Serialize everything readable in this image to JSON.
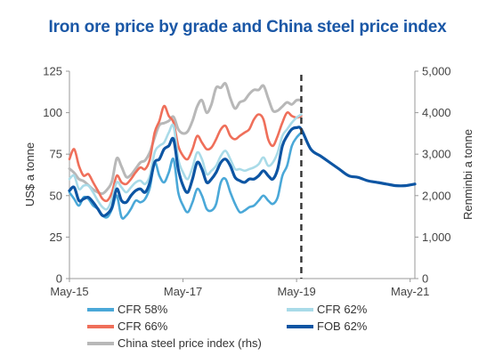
{
  "chart_data": {
    "type": "line",
    "title": "Iron ore price by grade and China steel price index",
    "ylabel": "US$ a tonne",
    "ylabel_right": "Renminbi a tonne",
    "xlabel": "",
    "x_ticks": [
      "May-15",
      "May-17",
      "May-19",
      "May-21"
    ],
    "y_ticks_left": [
      "0",
      "25",
      "50",
      "75",
      "100",
      "125"
    ],
    "y_ticks_right": [
      "0",
      "1,000",
      "2,000",
      "3,000",
      "4,000",
      "5,000"
    ],
    "ylim": [
      0,
      125
    ],
    "ylim_right": [
      0,
      5000
    ],
    "xlim": [
      "2015-05",
      "2021-06"
    ],
    "forecast_marker": "2019-06",
    "legend_placement": "bottom",
    "grid": false,
    "colors": {
      "title": "#1a57a6",
      "cfr58": "#4aa8d8",
      "cfr62": "#a9dbe8",
      "cfr66": "#ef6f5a",
      "fob62": "#0d55a3",
      "steel": "#b8b8b8",
      "marker": "#333333"
    },
    "series": [
      {
        "name": "CFR 58%",
        "key": "cfr58",
        "axis": "left",
        "x": [
          "2015-05",
          "2015-06",
          "2015-07",
          "2015-08",
          "2015-09",
          "2015-10",
          "2015-11",
          "2015-12",
          "2016-01",
          "2016-02",
          "2016-03",
          "2016-04",
          "2016-05",
          "2016-06",
          "2016-07",
          "2016-08",
          "2016-09",
          "2016-10",
          "2016-11",
          "2016-12",
          "2017-01",
          "2017-02",
          "2017-03",
          "2017-04",
          "2017-05",
          "2017-06",
          "2017-07",
          "2017-08",
          "2017-09",
          "2017-10",
          "2017-11",
          "2017-12",
          "2018-01",
          "2018-02",
          "2018-03",
          "2018-04",
          "2018-05",
          "2018-06",
          "2018-07",
          "2018-08",
          "2018-09",
          "2018-10",
          "2018-11",
          "2018-12",
          "2019-01",
          "2019-02",
          "2019-03",
          "2019-04",
          "2019-05",
          "2019-06"
        ],
        "values": [
          52,
          48,
          44,
          49,
          48,
          44,
          42,
          38,
          37,
          42,
          50,
          37,
          38,
          42,
          47,
          46,
          48,
          55,
          70,
          62,
          58,
          64,
          72,
          52,
          44,
          40,
          46,
          54,
          50,
          42,
          41,
          45,
          58,
          60,
          52,
          45,
          40,
          41,
          43,
          44,
          47,
          50,
          47,
          45,
          49,
          62,
          68,
          80,
          85,
          88
        ]
      },
      {
        "name": "CFR 62%",
        "key": "cfr62",
        "axis": "left",
        "x": [
          "2015-05",
          "2015-06",
          "2015-07",
          "2015-08",
          "2015-09",
          "2015-10",
          "2015-11",
          "2015-12",
          "2016-01",
          "2016-02",
          "2016-03",
          "2016-04",
          "2016-05",
          "2016-06",
          "2016-07",
          "2016-08",
          "2016-09",
          "2016-10",
          "2016-11",
          "2016-12",
          "2017-01",
          "2017-02",
          "2017-03",
          "2017-04",
          "2017-05",
          "2017-06",
          "2017-07",
          "2017-08",
          "2017-09",
          "2017-10",
          "2017-11",
          "2017-12",
          "2018-01",
          "2018-02",
          "2018-03",
          "2018-04",
          "2018-05",
          "2018-06",
          "2018-07",
          "2018-08",
          "2018-09",
          "2018-10",
          "2018-11",
          "2018-12",
          "2019-01",
          "2019-02",
          "2019-03",
          "2019-04",
          "2019-05",
          "2019-06"
        ],
        "values": [
          60,
          62,
          54,
          56,
          56,
          52,
          47,
          43,
          42,
          48,
          58,
          55,
          52,
          55,
          58,
          59,
          57,
          62,
          76,
          80,
          82,
          88,
          92,
          72,
          64,
          60,
          67,
          76,
          72,
          63,
          65,
          68,
          74,
          77,
          72,
          66,
          66,
          65,
          66,
          67,
          69,
          73,
          68,
          70,
          76,
          86,
          90,
          94,
          97,
          99
        ]
      },
      {
        "name": "CFR 66%",
        "key": "cfr66",
        "axis": "left",
        "x": [
          "2015-05",
          "2015-06",
          "2015-07",
          "2015-08",
          "2015-09",
          "2015-10",
          "2015-11",
          "2015-12",
          "2016-01",
          "2016-02",
          "2016-03",
          "2016-04",
          "2016-05",
          "2016-06",
          "2016-07",
          "2016-08",
          "2016-09",
          "2016-10",
          "2016-11",
          "2016-12",
          "2017-01",
          "2017-02",
          "2017-03",
          "2017-04",
          "2017-05",
          "2017-06",
          "2017-07",
          "2017-08",
          "2017-09",
          "2017-10",
          "2017-11",
          "2017-12",
          "2018-01",
          "2018-02",
          "2018-03",
          "2018-04",
          "2018-05",
          "2018-06",
          "2018-07",
          "2018-08",
          "2018-09",
          "2018-10",
          "2018-11",
          "2018-12",
          "2019-01",
          "2019-02",
          "2019-03",
          "2019-04",
          "2019-05",
          "2019-06"
        ],
        "values": [
          72,
          78,
          68,
          62,
          63,
          58,
          53,
          48,
          47,
          52,
          62,
          58,
          57,
          60,
          64,
          67,
          66,
          72,
          88,
          95,
          104,
          98,
          94,
          80,
          74,
          72,
          78,
          86,
          82,
          78,
          79,
          84,
          90,
          92,
          86,
          84,
          86,
          88,
          90,
          96,
          99,
          96,
          84,
          80,
          86,
          94,
          100,
          98,
          97,
          98
        ]
      },
      {
        "name": "China steel price index (rhs)",
        "key": "steel",
        "axis": "right",
        "x": [
          "2015-05",
          "2015-06",
          "2015-07",
          "2015-08",
          "2015-09",
          "2015-10",
          "2015-11",
          "2015-12",
          "2016-01",
          "2016-02",
          "2016-03",
          "2016-04",
          "2016-05",
          "2016-06",
          "2016-07",
          "2016-08",
          "2016-09",
          "2016-10",
          "2016-11",
          "2016-12",
          "2017-01",
          "2017-02",
          "2017-03",
          "2017-04",
          "2017-05",
          "2017-06",
          "2017-07",
          "2017-08",
          "2017-09",
          "2017-10",
          "2017-11",
          "2017-12",
          "2018-01",
          "2018-02",
          "2018-03",
          "2018-04",
          "2018-05",
          "2018-06",
          "2018-07",
          "2018-08",
          "2018-09",
          "2018-10",
          "2018-11",
          "2018-12",
          "2019-01",
          "2019-02",
          "2019-03",
          "2019-04",
          "2019-05",
          "2019-06"
        ],
        "values": [
          2650,
          2550,
          2400,
          2350,
          2250,
          2150,
          2080,
          2050,
          2150,
          2350,
          2900,
          2700,
          2450,
          2500,
          2650,
          2800,
          2850,
          3050,
          3400,
          3700,
          3750,
          3800,
          3900,
          3600,
          3500,
          3550,
          3800,
          4150,
          4300,
          4000,
          4200,
          4600,
          4600,
          4700,
          4350,
          4100,
          4250,
          4300,
          4450,
          4550,
          4550,
          4650,
          4350,
          4050,
          4050,
          4150,
          4250,
          4200,
          4300,
          4300
        ]
      },
      {
        "name": "FOB 62%",
        "key": "fob62",
        "axis": "left",
        "x": [
          "2015-05",
          "2015-06",
          "2015-07",
          "2015-08",
          "2015-09",
          "2015-10",
          "2015-11",
          "2015-12",
          "2016-01",
          "2016-02",
          "2016-03",
          "2016-04",
          "2016-05",
          "2016-06",
          "2016-07",
          "2016-08",
          "2016-09",
          "2016-10",
          "2016-11",
          "2016-12",
          "2017-01",
          "2017-02",
          "2017-03",
          "2017-04",
          "2017-05",
          "2017-06",
          "2017-07",
          "2017-08",
          "2017-09",
          "2017-10",
          "2017-11",
          "2017-12",
          "2018-01",
          "2018-02",
          "2018-03",
          "2018-04",
          "2018-05",
          "2018-06",
          "2018-07",
          "2018-08",
          "2018-09",
          "2018-10",
          "2018-11",
          "2018-12",
          "2019-01",
          "2019-02",
          "2019-03",
          "2019-04",
          "2019-05",
          "2019-06",
          "2019-08",
          "2019-10",
          "2019-12",
          "2020-02",
          "2020-04",
          "2020-06",
          "2020-08",
          "2020-10",
          "2020-12",
          "2021-02",
          "2021-04",
          "2021-06"
        ],
        "values": [
          53,
          55,
          47,
          48,
          49,
          46,
          42,
          38,
          39,
          43,
          54,
          47,
          46,
          50,
          53,
          54,
          52,
          58,
          70,
          72,
          78,
          80,
          84,
          66,
          56,
          52,
          60,
          70,
          66,
          58,
          60,
          64,
          70,
          72,
          68,
          61,
          59,
          58,
          60,
          60,
          62,
          65,
          62,
          60,
          66,
          80,
          86,
          90,
          91,
          90,
          78,
          74,
          70,
          66,
          62,
          61,
          59,
          58,
          57,
          56,
          56,
          57
        ]
      }
    ]
  }
}
